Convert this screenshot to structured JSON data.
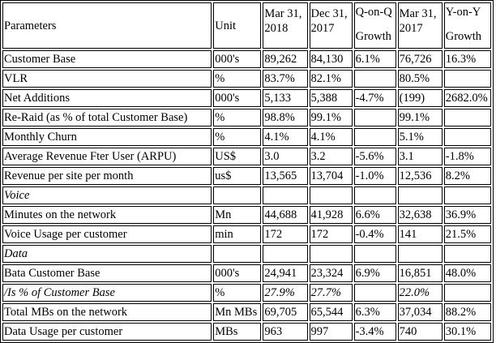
{
  "headers": {
    "parameters": "Parameters",
    "unit": "Unit",
    "mar2018_line1": "Mar 31,",
    "mar2018_line2": "2018",
    "dec2017_line1": "Dec 31,",
    "dec2017_line2": "2017",
    "qoq_line1": "Q-on-Q",
    "qoq_line2": "Growth",
    "mar2017_line1": "Mar 31,",
    "mar2017_line2": "2017",
    "yoy_line1": "Y-on-Y",
    "yoy_line2": "Growth"
  },
  "rows": [
    {
      "param": "Customer Base",
      "unit": "000's",
      "mar18": "89,262",
      "dec17": "84,130",
      "qoq": "6.1%",
      "mar17": "76,726",
      "yoy": "16.3%"
    },
    {
      "param": "VLR",
      "unit": "%",
      "mar18": "83.7%",
      "dec17": "82.1%",
      "qoq": "",
      "mar17": "80.5%",
      "yoy": ""
    },
    {
      "param": "Net Additions",
      "unit": "000's",
      "mar18": "5,133",
      "dec17": "5,388",
      "qoq": "-4.7%",
      "mar17": "(199)",
      "yoy": "2682.0%"
    },
    {
      "param": "Re-Raid (as % of total Customer Base)",
      "unit": "%",
      "mar18": "98.8%",
      "dec17": "99.1%",
      "qoq": "",
      "mar17": "99.1%",
      "yoy": ""
    },
    {
      "param": "Monthly Churn",
      "unit": "%",
      "mar18": "4.1%",
      "dec17": "4.1%",
      "qoq": "",
      "mar17": "5.1%",
      "yoy": ""
    },
    {
      "param": "Average Revenue Fter User (ARPU)",
      "unit": "US$",
      "mar18": "3.0",
      "dec17": "3.2",
      "qoq": "-5.6%",
      "mar17": "3.1",
      "yoy": "-1.8%"
    },
    {
      "param": "Revenue per site per month",
      "unit": "us$",
      "mar18": "13,565",
      "dec17": "13,704",
      "qoq": "-1.0%",
      "mar17": "12,536",
      "yoy": "8.2%"
    },
    {
      "section": "Voice"
    },
    {
      "param": "Minutes on the network",
      "unit": "Mn",
      "mar18": "44,688",
      "dec17": "41,928",
      "qoq": "6.6%",
      "mar17": "32,638",
      "yoy": "36.9%"
    },
    {
      "param": "Voice Usage per customer",
      "unit": "min",
      "mar18": "172",
      "dec17": "172",
      "qoq": "-0.4%",
      "mar17": "141",
      "yoy": "21.5%"
    },
    {
      "section": "Data"
    },
    {
      "param": "Bata Customer Base",
      "unit": "000's",
      "mar18": "24,941",
      "dec17": "23,324",
      "qoq": "6.9%",
      "mar17": "16,851",
      "yoy": "48.0%"
    },
    {
      "param": "/Is % of Customer Base",
      "unit": "%",
      "mar18": "27.9%",
      "dec17": "27.7%",
      "qoq": "",
      "mar17": "22.0%",
      "yoy": "",
      "italic": true
    },
    {
      "param": "Total MBs on the network",
      "unit": "Mn MBs",
      "mar18": "69,705",
      "dec17": "65,544",
      "qoq": "6.3%",
      "mar17": "37,034",
      "yoy": "88.2%"
    },
    {
      "param": "Data Usage per customer",
      "unit": "MBs",
      "mar18": "963",
      "dec17": "997",
      "qoq": "-3.4%",
      "mar17": "740",
      "yoy": "30.1%"
    }
  ]
}
